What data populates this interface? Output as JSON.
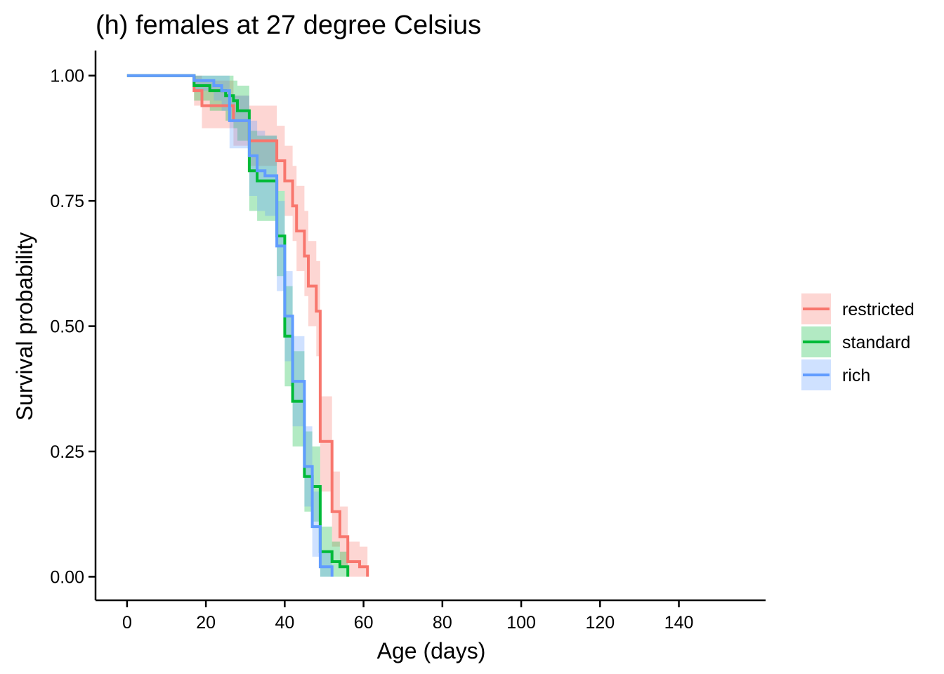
{
  "chart_data": {
    "type": "line",
    "subtype": "kaplan-meier survival curve with confidence bands",
    "title": "(h) females at 27 degree Celsius",
    "xlabel": "Age (days)",
    "ylabel": "Survival probability",
    "xlim": [
      -8,
      162
    ],
    "ylim": [
      -0.047,
      1.05
    ],
    "x_ticks": [
      0,
      20,
      40,
      60,
      80,
      100,
      120,
      140
    ],
    "x_tick_labels": [
      "0",
      "20",
      "40",
      "60",
      "80",
      "100",
      "120",
      "140"
    ],
    "y_ticks": [
      0,
      0.25,
      0.5,
      0.75,
      1.0
    ],
    "y_tick_labels": [
      "0.00",
      "0.25",
      "0.50",
      "0.75",
      "1.00"
    ],
    "grid": false,
    "legend_position": "right",
    "series": [
      {
        "name": "restricted",
        "color": "#F8766D",
        "steps": [
          [
            0,
            1.0
          ],
          [
            17,
            0.97
          ],
          [
            19,
            0.94
          ],
          [
            27,
            0.91
          ],
          [
            31,
            0.87
          ],
          [
            38,
            0.83
          ],
          [
            40,
            0.79
          ],
          [
            42,
            0.74
          ],
          [
            43,
            0.69
          ],
          [
            45,
            0.64
          ],
          [
            46,
            0.58
          ],
          [
            48,
            0.53
          ],
          [
            49,
            0.27
          ],
          [
            52,
            0.13
          ],
          [
            54,
            0.08
          ],
          [
            56,
            0.03
          ],
          [
            59,
            0.02
          ],
          [
            61,
            0.0
          ]
        ],
        "lower": [
          1.0,
          0.94,
          0.895,
          0.86,
          0.82,
          0.77,
          0.72,
          0.67,
          0.61,
          0.56,
          0.5,
          0.44,
          0.17,
          0.06,
          0.02,
          0.0,
          0.0,
          0.0
        ],
        "upper": [
          1.0,
          1.0,
          0.99,
          0.96,
          0.94,
          0.9,
          0.86,
          0.82,
          0.78,
          0.73,
          0.67,
          0.63,
          0.36,
          0.21,
          0.14,
          0.07,
          0.06,
          0.0
        ]
      },
      {
        "name": "standard",
        "color": "#00BA38",
        "steps": [
          [
            0,
            1.0
          ],
          [
            17,
            0.98
          ],
          [
            21,
            0.97
          ],
          [
            25,
            0.96
          ],
          [
            27,
            0.95
          ],
          [
            28,
            0.93
          ],
          [
            31,
            0.81
          ],
          [
            33,
            0.79
          ],
          [
            38,
            0.68
          ],
          [
            40,
            0.48
          ],
          [
            42,
            0.35
          ],
          [
            45,
            0.2
          ],
          [
            47,
            0.18
          ],
          [
            49,
            0.05
          ],
          [
            52,
            0.03
          ],
          [
            54,
            0.02
          ],
          [
            56,
            0.0
          ]
        ],
        "lower": [
          1.0,
          0.95,
          0.93,
          0.91,
          0.895,
          0.87,
          0.73,
          0.71,
          0.6,
          0.38,
          0.26,
          0.13,
          0.11,
          0.0,
          0.0,
          0.0,
          0.0
        ],
        "upper": [
          1.0,
          1.0,
          1.0,
          1.0,
          0.99,
          0.98,
          0.89,
          0.88,
          0.77,
          0.58,
          0.45,
          0.29,
          0.26,
          0.1,
          0.07,
          0.05,
          0.0
        ]
      },
      {
        "name": "rich",
        "color": "#619CFF",
        "steps": [
          [
            0,
            1.0
          ],
          [
            17,
            0.99
          ],
          [
            22,
            0.98
          ],
          [
            24,
            0.97
          ],
          [
            26,
            0.91
          ],
          [
            31,
            0.84
          ],
          [
            33,
            0.81
          ],
          [
            35,
            0.8
          ],
          [
            38,
            0.66
          ],
          [
            40,
            0.52
          ],
          [
            42,
            0.39
          ],
          [
            45,
            0.22
          ],
          [
            47,
            0.1
          ],
          [
            49,
            0.02
          ],
          [
            52,
            0.0
          ]
        ],
        "lower": [
          1.0,
          0.97,
          0.95,
          0.93,
          0.855,
          0.76,
          0.73,
          0.72,
          0.57,
          0.43,
          0.3,
          0.14,
          0.04,
          0.0,
          0.0
        ],
        "upper": [
          1.0,
          1.0,
          1.0,
          1.0,
          0.96,
          0.91,
          0.89,
          0.88,
          0.75,
          0.61,
          0.48,
          0.3,
          0.17,
          0.05,
          0.0
        ]
      }
    ]
  }
}
